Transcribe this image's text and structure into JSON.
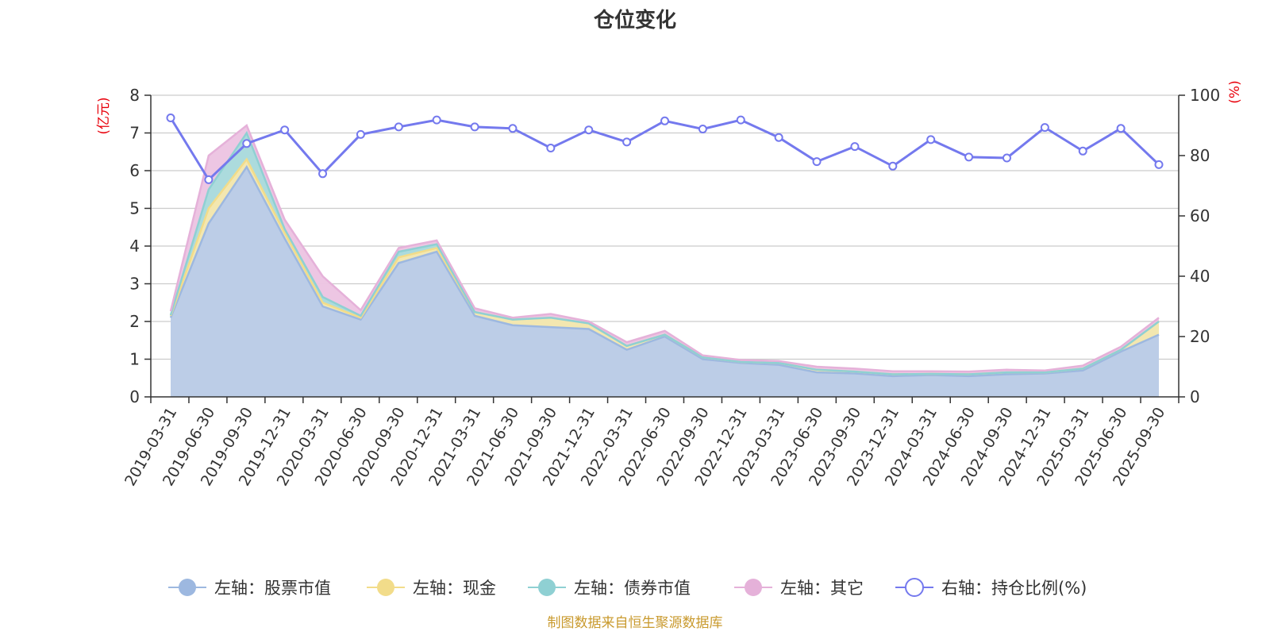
{
  "chart_data": {
    "type": "area",
    "title": "仓位变化",
    "left_axis_unit": "(亿元)",
    "right_axis_unit": "(%)",
    "left_ylim": [
      0,
      8
    ],
    "right_ylim": [
      0,
      100
    ],
    "left_ticks": [
      0,
      1,
      2,
      3,
      4,
      5,
      6,
      7,
      8
    ],
    "right_ticks": [
      0,
      20,
      40,
      60,
      80,
      100
    ],
    "grid": true,
    "legend_position": "bottom",
    "categories": [
      "2019-03-31",
      "2019-06-30",
      "2019-09-30",
      "2019-12-31",
      "2020-03-31",
      "2020-06-30",
      "2020-09-30",
      "2020-12-31",
      "2021-03-31",
      "2021-06-30",
      "2021-09-30",
      "2021-12-31",
      "2022-03-31",
      "2022-06-30",
      "2022-09-30",
      "2022-12-31",
      "2023-03-31",
      "2023-06-30",
      "2023-09-30",
      "2023-12-31",
      "2024-03-31",
      "2024-06-30",
      "2024-09-30",
      "2024-12-31",
      "2025-03-31",
      "2025-06-30",
      "2025-09-30"
    ],
    "series": [
      {
        "name": "左轴：股票市值",
        "axis": "left",
        "type": "stacked-area",
        "color": "#9db8e0",
        "fill": "#b8cbea",
        "values": [
          2.1,
          4.6,
          6.1,
          4.2,
          2.4,
          2.05,
          3.55,
          3.85,
          2.15,
          1.9,
          1.85,
          1.8,
          1.25,
          1.6,
          1.0,
          0.9,
          0.85,
          0.65,
          0.62,
          0.55,
          0.58,
          0.55,
          0.6,
          0.62,
          0.7,
          1.2,
          1.65
        ]
      },
      {
        "name": "左轴：现金",
        "axis": "left",
        "type": "stacked-area",
        "color": "#f2dc8a",
        "fill": "#f7e8ad",
        "values": [
          0.05,
          0.4,
          0.2,
          0.15,
          0.1,
          0.05,
          0.15,
          0.1,
          0.1,
          0.15,
          0.25,
          0.15,
          0.1,
          0.05,
          0.05,
          0.03,
          0.05,
          0.07,
          0.05,
          0.05,
          0.03,
          0.05,
          0.05,
          0.03,
          0.05,
          0.05,
          0.35
        ]
      },
      {
        "name": "左轴：债券市值",
        "axis": "left",
        "type": "stacked-area",
        "color": "#8fd0d3",
        "fill": "#a9dcdc",
        "values": [
          0.02,
          0.5,
          0.7,
          0.1,
          0.15,
          0.05,
          0.15,
          0.1,
          0.0,
          0.0,
          0.0,
          0.0,
          0.0,
          0.0,
          0.0,
          0.0,
          0.0,
          0.0,
          0.0,
          0.0,
          0.0,
          0.0,
          0.0,
          0.0,
          0.0,
          0.0,
          0.0
        ]
      },
      {
        "name": "左轴：其它",
        "axis": "left",
        "type": "stacked-area",
        "color": "#e5b1d9",
        "fill": "#ecc3e2",
        "values": [
          0.1,
          0.9,
          0.2,
          0.25,
          0.55,
          0.15,
          0.1,
          0.1,
          0.1,
          0.05,
          0.1,
          0.05,
          0.1,
          0.1,
          0.05,
          0.05,
          0.05,
          0.08,
          0.08,
          0.08,
          0.07,
          0.07,
          0.07,
          0.05,
          0.08,
          0.08,
          0.1
        ]
      },
      {
        "name": "右轴：持仓比例(%)",
        "axis": "right",
        "type": "line",
        "color": "#7479ee",
        "values": [
          92.5,
          72.0,
          84.0,
          88.5,
          74.0,
          87.0,
          89.5,
          91.8,
          89.5,
          89.0,
          82.5,
          88.5,
          84.5,
          91.5,
          88.8,
          91.8,
          86.0,
          78.0,
          83.0,
          76.5,
          85.3,
          79.5,
          79.2,
          89.3,
          81.5,
          89.0,
          77.0
        ]
      }
    ]
  },
  "source": "制图数据来自恒生聚源数据库"
}
